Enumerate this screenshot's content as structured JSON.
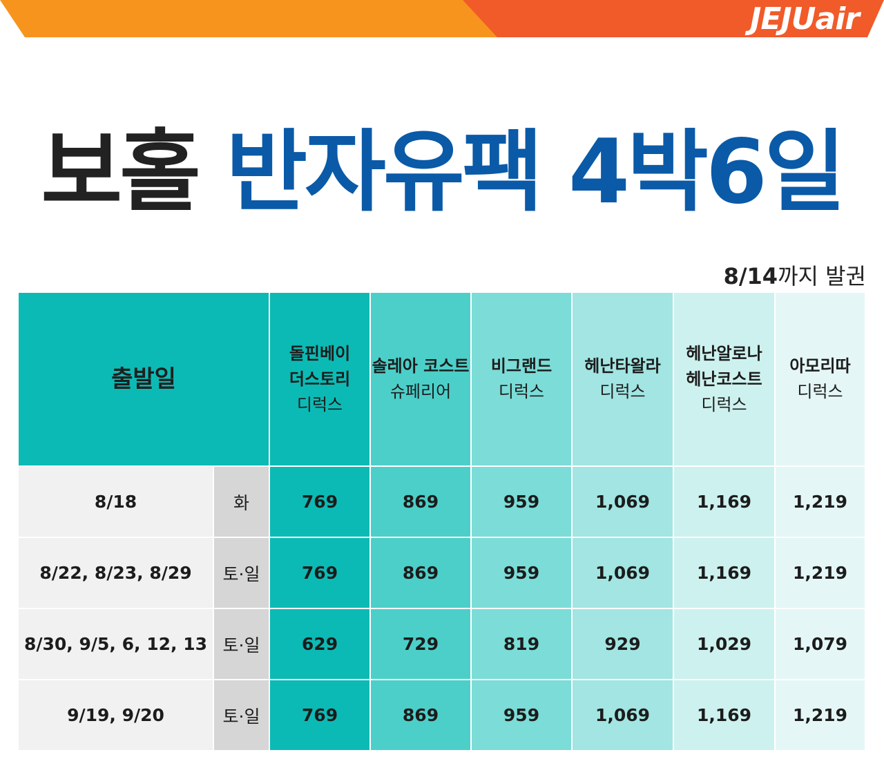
{
  "brand": {
    "logo_text": "JEJUair",
    "colors": {
      "orange": "#f7941d",
      "red_orange": "#f15a29"
    }
  },
  "title": {
    "part1": "보홀",
    "part2": "반자유팩 4박6일"
  },
  "note": {
    "date": "8/14",
    "suffix": "까지 발권"
  },
  "table": {
    "header": {
      "departure": "출발일",
      "hotels": [
        {
          "lines": [
            "돌핀베이",
            "더스토리",
            "디럭스"
          ]
        },
        {
          "lines": [
            "솔레아 코스트",
            "슈페리어"
          ]
        },
        {
          "lines": [
            "비그랜드",
            "디럭스"
          ]
        },
        {
          "lines": [
            "헤난타왈라",
            "디럭스"
          ]
        },
        {
          "lines": [
            "헤난알로나",
            "헤난코스트",
            "디럭스"
          ]
        },
        {
          "lines": [
            "아모리따",
            "디럭스"
          ]
        }
      ]
    },
    "rows": [
      {
        "date": "8/18",
        "day": "화",
        "prices": [
          "769",
          "869",
          "959",
          "1,069",
          "1,169",
          "1,219"
        ]
      },
      {
        "date": "8/22, 8/23, 8/29",
        "day": "토·일",
        "prices": [
          "769",
          "869",
          "959",
          "1,069",
          "1,169",
          "1,219"
        ]
      },
      {
        "date": "8/30, 9/5, 6, 12, 13",
        "day": "토·일",
        "prices": [
          "629",
          "729",
          "819",
          "929",
          "1,029",
          "1,079"
        ]
      },
      {
        "date": "9/19, 9/20",
        "day": "토·일",
        "prices": [
          "769",
          "869",
          "959",
          "1,069",
          "1,169",
          "1,219"
        ]
      }
    ],
    "column_colors": [
      "#0cbab5",
      "#4ccfc9",
      "#7cdcd7",
      "#a2e5e2",
      "#cdf1ee",
      "#e4f7f6"
    ]
  }
}
